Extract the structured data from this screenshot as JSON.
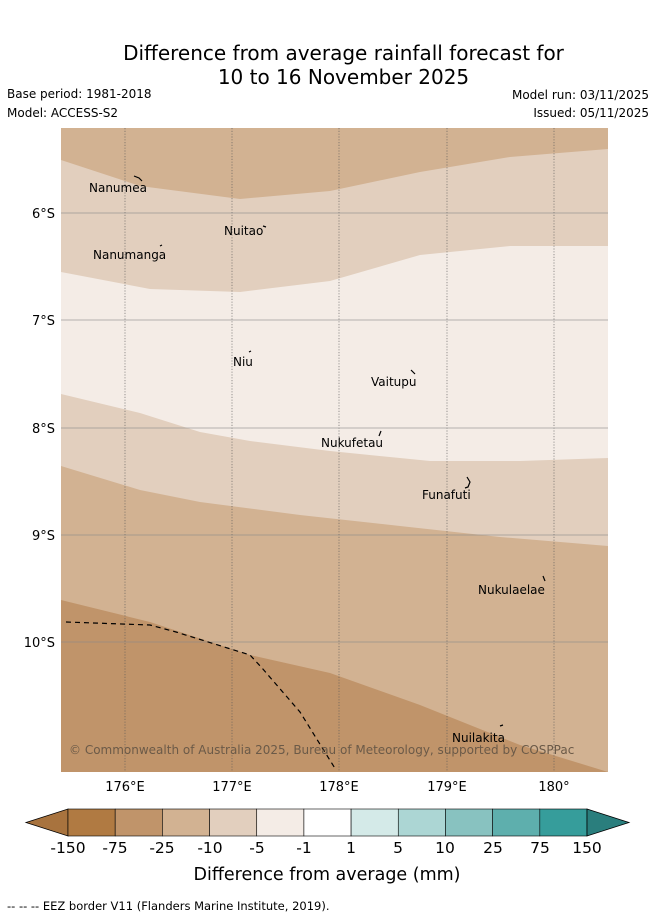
{
  "title": {
    "line1": "Difference from average rainfall forecast for",
    "line2": "10 to 16 November 2025"
  },
  "info": {
    "base_period": "Base period: 1981-2018",
    "model": "Model: ACCESS-S2",
    "model_run": "Model run: 03/11/2025",
    "issued": "Issued: 05/11/2025"
  },
  "map": {
    "lat_labels": [
      "6°S",
      "7°S",
      "8°S",
      "9°S",
      "10°S"
    ],
    "lon_labels": [
      "176°E",
      "177°E",
      "178°E",
      "179°E",
      "180°"
    ],
    "places": [
      "Nanumea",
      "Nuitao",
      "Nanumanga",
      "Niu",
      "Vaitupu",
      "Nukufetau",
      "Funafuti",
      "Nukulaelae",
      "Nuilakita"
    ],
    "copyright": "© Commonwealth of Australia 2025, Bureau of Meteorology, supported by COSPPac"
  },
  "legend": {
    "ticks": [
      "-150",
      "-75",
      "-25",
      "-10",
      "-5",
      "-1",
      "1",
      "5",
      "10",
      "25",
      "75",
      "150"
    ],
    "colors": [
      "#a8733e",
      "#b07a42",
      "#c0946a",
      "#d2b292",
      "#e2cfbe",
      "#f4ece6",
      "#ffffff",
      "#d4eae8",
      "#acd6d4",
      "#88c2c0",
      "#5eafad",
      "#369d9b",
      "#2a7e7d"
    ],
    "label": "Difference from average (mm)"
  },
  "footer": "--  --  -- EEZ border V11 (Flanders Marine Institute, 2019)."
}
